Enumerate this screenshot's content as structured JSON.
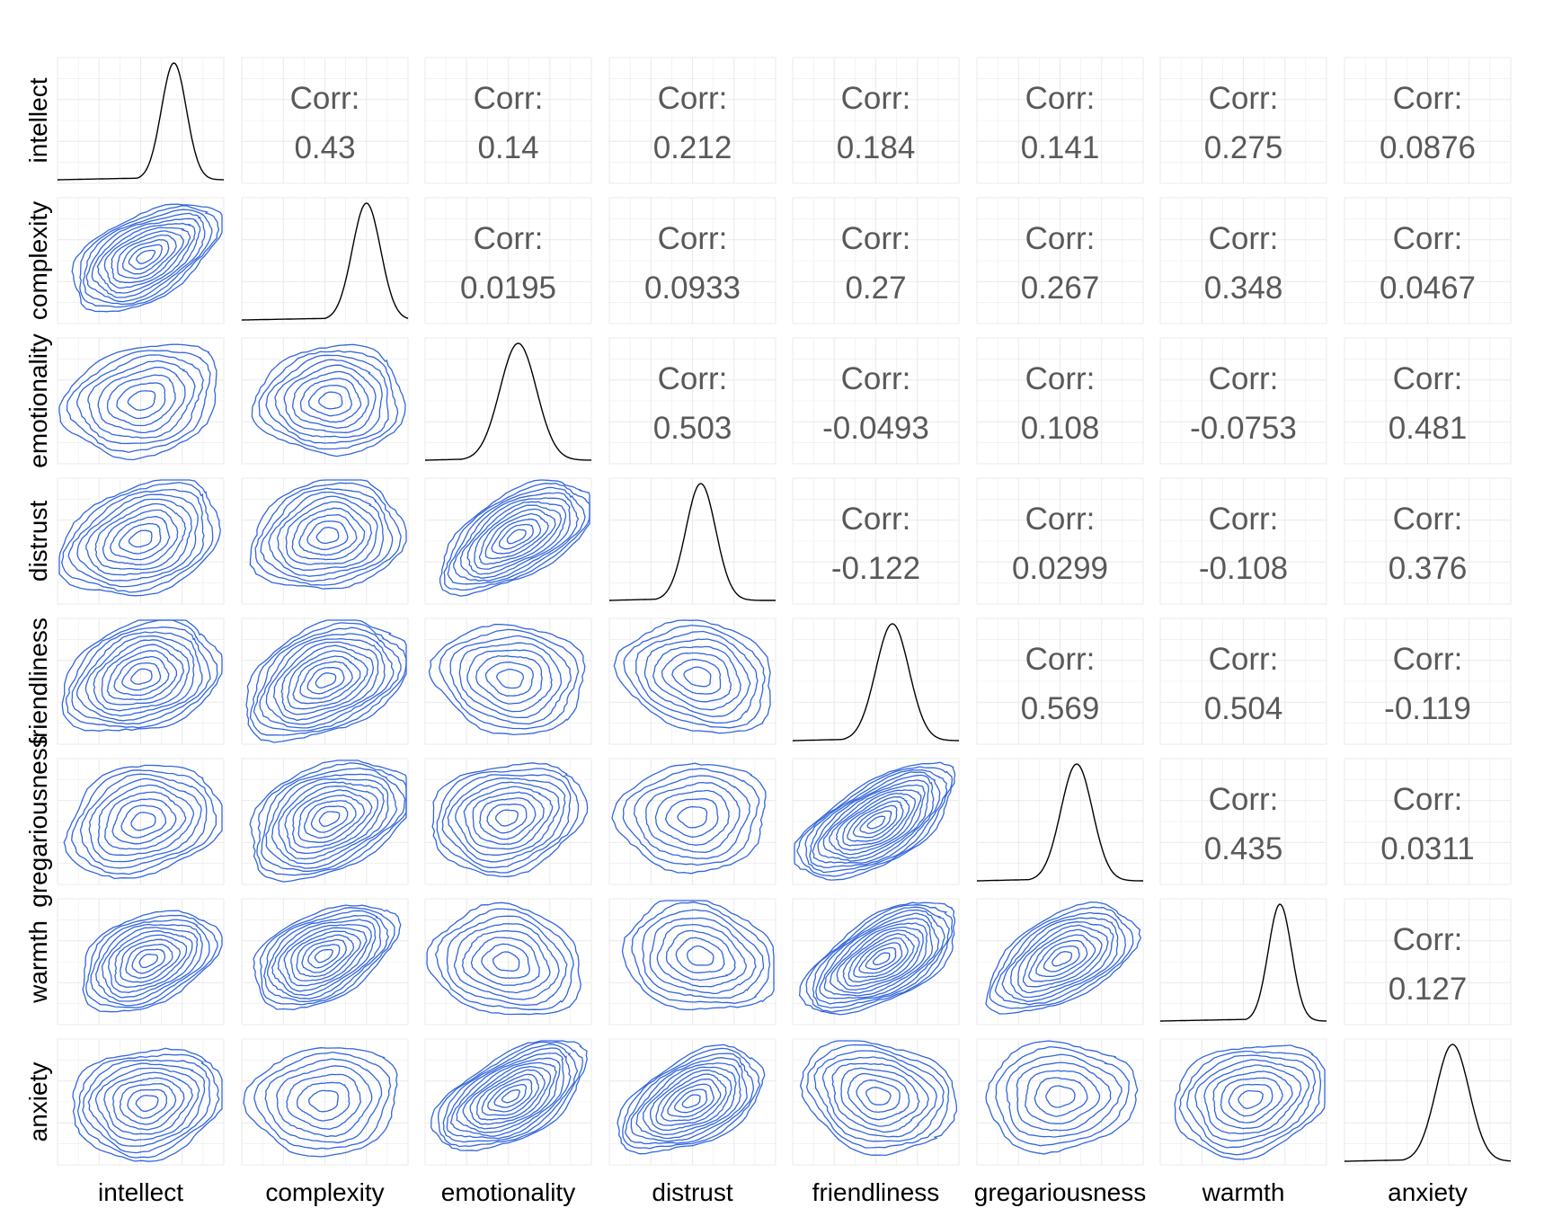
{
  "chart_data": {
    "type": "pairs",
    "variables": [
      "intellect",
      "complexity",
      "emotionality",
      "distrust",
      "friendliness",
      "gregariousness",
      "warmth",
      "anxiety"
    ],
    "corr_label": "Corr:",
    "correlations": [
      {
        "row": "intellect",
        "col": "complexity",
        "value": "0.43"
      },
      {
        "row": "intellect",
        "col": "emotionality",
        "value": "0.14"
      },
      {
        "row": "intellect",
        "col": "distrust",
        "value": "0.212"
      },
      {
        "row": "intellect",
        "col": "friendliness",
        "value": "0.184"
      },
      {
        "row": "intellect",
        "col": "gregariousness",
        "value": "0.141"
      },
      {
        "row": "intellect",
        "col": "warmth",
        "value": "0.275"
      },
      {
        "row": "intellect",
        "col": "anxiety",
        "value": "0.0876"
      },
      {
        "row": "complexity",
        "col": "emotionality",
        "value": "0.0195"
      },
      {
        "row": "complexity",
        "col": "distrust",
        "value": "0.0933"
      },
      {
        "row": "complexity",
        "col": "friendliness",
        "value": "0.27"
      },
      {
        "row": "complexity",
        "col": "gregariousness",
        "value": "0.267"
      },
      {
        "row": "complexity",
        "col": "warmth",
        "value": "0.348"
      },
      {
        "row": "complexity",
        "col": "anxiety",
        "value": "0.0467"
      },
      {
        "row": "emotionality",
        "col": "distrust",
        "value": "0.503"
      },
      {
        "row": "emotionality",
        "col": "friendliness",
        "value": "-0.0493"
      },
      {
        "row": "emotionality",
        "col": "gregariousness",
        "value": "0.108"
      },
      {
        "row": "emotionality",
        "col": "warmth",
        "value": "-0.0753"
      },
      {
        "row": "emotionality",
        "col": "anxiety",
        "value": "0.481"
      },
      {
        "row": "distrust",
        "col": "friendliness",
        "value": "-0.122"
      },
      {
        "row": "distrust",
        "col": "gregariousness",
        "value": "0.0299"
      },
      {
        "row": "distrust",
        "col": "warmth",
        "value": "-0.108"
      },
      {
        "row": "distrust",
        "col": "anxiety",
        "value": "0.376"
      },
      {
        "row": "friendliness",
        "col": "gregariousness",
        "value": "0.569"
      },
      {
        "row": "friendliness",
        "col": "warmth",
        "value": "0.504"
      },
      {
        "row": "friendliness",
        "col": "anxiety",
        "value": "-0.119"
      },
      {
        "row": "gregariousness",
        "col": "warmth",
        "value": "0.435"
      },
      {
        "row": "gregariousness",
        "col": "anxiety",
        "value": "0.0311"
      },
      {
        "row": "warmth",
        "col": "anxiety",
        "value": "0.127"
      }
    ],
    "diagonal": "density",
    "lower": "density2d",
    "colors": {
      "density_line": "#000000",
      "contour_line": "#3366dd",
      "grid": "#ebebeb",
      "corr_text": "#595959",
      "axis_text": "#000000"
    },
    "grid": true
  }
}
